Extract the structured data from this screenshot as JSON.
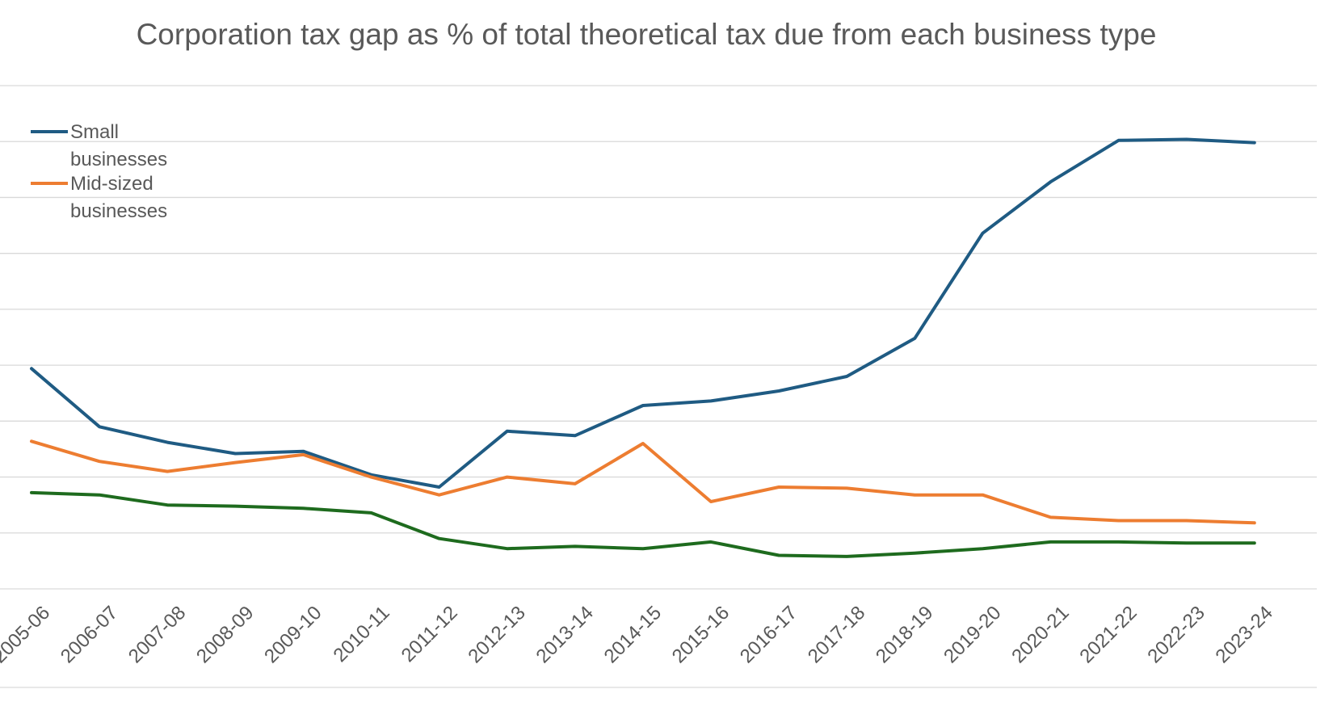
{
  "chart_data": {
    "type": "line",
    "title": "Corporation tax gap as % of total theoretical tax due from each business type",
    "xlabel": "",
    "ylabel": "",
    "categories": [
      "2005-06",
      "2006-07",
      "2007-08",
      "2008-09",
      "2009-10",
      "2010-11",
      "2011-12",
      "2012-13",
      "2013-14",
      "2014-15",
      "2015-16",
      "2016-17",
      "2017-18",
      "2018-19",
      "2019-20",
      "2020-21",
      "2021-22",
      "2022-23",
      "2023-24"
    ],
    "ylim": [
      0,
      45
    ],
    "grid": true,
    "legend_position": "top-left",
    "series": [
      {
        "name": "Small businesses",
        "color": "#1f5b83",
        "values": [
          19.7,
          14.5,
          13.1,
          12.1,
          12.3,
          10.2,
          9.1,
          14.1,
          13.7,
          16.4,
          16.8,
          17.7,
          19.0,
          22.4,
          31.8,
          36.4,
          40.1,
          40.2,
          39.9
        ]
      },
      {
        "name": "Mid-sized businesses",
        "color": "#ed7d31",
        "values": [
          13.2,
          11.4,
          10.5,
          11.3,
          12.0,
          10.0,
          8.4,
          10.0,
          9.4,
          13.0,
          7.8,
          9.1,
          9.0,
          8.4,
          8.4,
          6.4,
          6.1,
          6.1,
          5.9
        ]
      },
      {
        "name": "",
        "color": "#1e6b1e",
        "values": [
          8.6,
          8.4,
          7.5,
          7.4,
          7.2,
          6.8,
          4.5,
          3.6,
          3.8,
          3.6,
          4.2,
          3.0,
          2.9,
          3.2,
          3.6,
          4.2,
          4.2,
          4.1,
          4.1
        ]
      }
    ]
  }
}
